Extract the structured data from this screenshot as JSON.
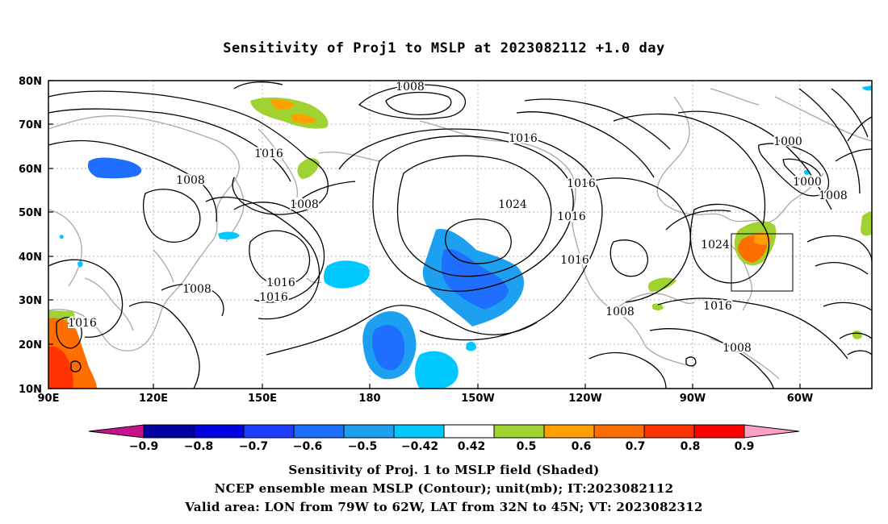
{
  "title": "Sensitivity of Proj1 to MSLP at 2023082112 +1.0 day",
  "y_axis_labels": [
    "80N",
    "70N",
    "60N",
    "50N",
    "40N",
    "30N",
    "20N",
    "10N"
  ],
  "x_axis_labels": [
    "90E",
    "120E",
    "150E",
    "180",
    "150W",
    "120W",
    "90W",
    "60W"
  ],
  "contour_labels": [
    "1008",
    "1016",
    "1016",
    "1008",
    "1008",
    "1016",
    "1024",
    "1016",
    "1016",
    "1016",
    "1024",
    "1000",
    "1000",
    "1008",
    "1008",
    "1016",
    "1016",
    "1008",
    "1016",
    "1008",
    "1008"
  ],
  "colorbar": {
    "labels": [
      "−0.9",
      "−0.8",
      "−0.7",
      "−0.6",
      "−0.5",
      "−0.42",
      "0.42",
      "0.5",
      "0.6",
      "0.7",
      "0.8",
      "0.9"
    ],
    "colors": [
      "#0000a0",
      "#0000e0",
      "#1e3cff",
      "#1e6eff",
      "#1ea0f0",
      "#00c8ff",
      "#ffffff",
      "#a0d232",
      "#ffa000",
      "#ff6e00",
      "#ff3200",
      "#ff0000"
    ],
    "low_end_color": "#c8128c",
    "high_end_color": "#ffa0c8"
  },
  "captions": [
    "Sensitivity of Proj. 1 to MSLP field (Shaded)",
    "NCEP ensemble mean MSLP (Contour); unit(mb); IT:2023082112",
    "Valid area: LON from 79W to 62W, LAT from 32N to 45N; VT: 2023082312"
  ]
}
